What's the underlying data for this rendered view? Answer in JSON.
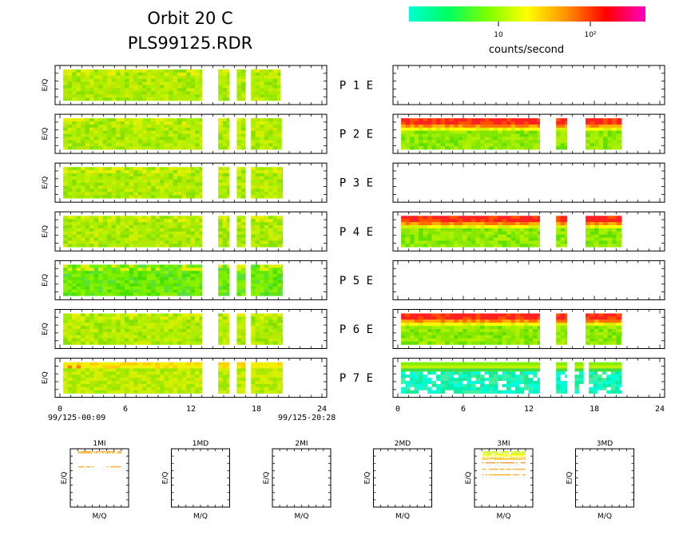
{
  "header": {
    "title_line1": "Orbit 20 C",
    "title_line2": "PLS99125.RDR"
  },
  "colorbar": {
    "label": "counts/second",
    "tick_labels": [
      "10",
      "10²"
    ],
    "colors": [
      "#00ffd0",
      "#00ff60",
      "#80ff00",
      "#ffff00",
      "#ff9000",
      "#ff0000",
      "#ff00c0"
    ]
  },
  "chart_data": {
    "type": "heatmap",
    "panels": [
      {
        "id": "P1",
        "left": {
          "blocks": [
            [
              0.3,
              13
            ],
            [
              14.5,
              15.5
            ],
            [
              16.2,
              17
            ],
            [
              17.5,
              20.2
            ]
          ],
          "profile": "green",
          "tall": false
        },
        "right": {
          "blocks": [],
          "profile": "none"
        }
      },
      {
        "id": "P2",
        "left": {
          "blocks": [
            [
              0.3,
              13
            ],
            [
              14.5,
              15.5
            ],
            [
              16.2,
              17
            ],
            [
              17.5,
              20.3
            ]
          ],
          "profile": "green"
        },
        "right": {
          "blocks": [
            [
              0.3,
              13
            ],
            [
              14.5,
              15.5
            ],
            [
              17.2,
              20.5
            ]
          ],
          "profile": "redtop"
        }
      },
      {
        "id": "P3",
        "left": {
          "blocks": [
            [
              0.3,
              13
            ],
            [
              14.5,
              15.5
            ],
            [
              16.2,
              17
            ],
            [
              17.5,
              20.4
            ]
          ],
          "profile": "green"
        },
        "right": {
          "blocks": [],
          "profile": "none"
        }
      },
      {
        "id": "P4",
        "left": {
          "blocks": [
            [
              0.3,
              13
            ],
            [
              14.5,
              15.5
            ],
            [
              16.2,
              17
            ],
            [
              17.5,
              20.4
            ]
          ],
          "profile": "green"
        },
        "right": {
          "blocks": [
            [
              0.3,
              13
            ],
            [
              14.5,
              15.5
            ],
            [
              17.2,
              20.5
            ]
          ],
          "profile": "redtop"
        }
      },
      {
        "id": "P5",
        "left": {
          "blocks": [
            [
              0.3,
              13
            ],
            [
              14.5,
              15.5
            ],
            [
              16.2,
              17
            ],
            [
              17.5,
              20.4
            ]
          ],
          "profile": "greener"
        },
        "right": {
          "blocks": [],
          "profile": "none"
        }
      },
      {
        "id": "P6",
        "left": {
          "blocks": [
            [
              0.3,
              13
            ],
            [
              14.5,
              15.5
            ],
            [
              16.2,
              17
            ],
            [
              17.5,
              20.4
            ]
          ],
          "profile": "green"
        },
        "right": {
          "blocks": [
            [
              0.3,
              13
            ],
            [
              14.5,
              15.5
            ],
            [
              17.2,
              20.5
            ]
          ],
          "profile": "redtop"
        }
      },
      {
        "id": "P7",
        "left": {
          "blocks": [
            [
              0.3,
              13
            ],
            [
              14.5,
              15.5
            ],
            [
              16.2,
              17
            ],
            [
              17.5,
              20.4
            ]
          ],
          "profile": "yellowtop"
        },
        "right": {
          "blocks": [
            [
              0.3,
              13
            ],
            [
              14.5,
              15.5
            ],
            [
              16.2,
              17
            ],
            [
              17.5,
              20.5
            ]
          ],
          "profile": "cyan"
        }
      }
    ],
    "panel_labels": [
      "P 1 E",
      "P 2 E",
      "P 3 E",
      "P 4 E",
      "P 5 E",
      "P 6 E",
      "P 7 E"
    ],
    "ylabel": "E/Q",
    "x_ticks": [
      "0",
      "6",
      "12",
      "18",
      "24"
    ],
    "xlim": [
      0,
      24
    ],
    "time_start": "99/125-00:09",
    "time_end": "99/125-20:28",
    "mass_panels": [
      {
        "title": "1MI",
        "xlabel": "M/Q",
        "ylabel": "E/Q",
        "has_data": true
      },
      {
        "title": "1MD",
        "xlabel": "M/Q",
        "ylabel": "E/Q",
        "has_data": false
      },
      {
        "title": "2MI",
        "xlabel": "M/Q",
        "ylabel": "E/Q",
        "has_data": false
      },
      {
        "title": "2MD",
        "xlabel": "M/Q",
        "ylabel": "E/Q",
        "has_data": false
      },
      {
        "title": "3MI",
        "xlabel": "M/Q",
        "ylabel": "E/Q",
        "has_data": true
      },
      {
        "title": "3MD",
        "xlabel": "M/Q",
        "ylabel": "E/Q",
        "has_data": false
      }
    ]
  }
}
